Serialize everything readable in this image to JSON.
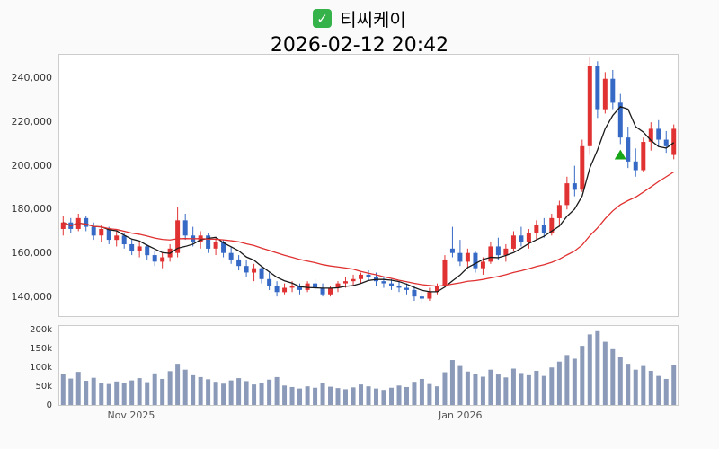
{
  "header": {
    "check_glyph": "✓",
    "checkbox_color": "#36b24a",
    "title": "티씨케이",
    "timestamp": "2026-02-12 20:42"
  },
  "chart_data": {
    "type": "candlestick",
    "title": "티씨케이",
    "subtitle": "2026-02-12 20:42",
    "legend": "none",
    "grid": false,
    "ylim": [
      131000,
      251000
    ],
    "vlim": [
      0,
      215000
    ],
    "candle_width": 5,
    "columns": [
      "open",
      "high",
      "low",
      "close",
      "volume"
    ],
    "y_ticks": [
      {
        "value": 140000,
        "label": "140,000"
      },
      {
        "value": 160000,
        "label": "160,000"
      },
      {
        "value": 180000,
        "label": "180,000"
      },
      {
        "value": 200000,
        "label": "200,000"
      },
      {
        "value": 220000,
        "label": "220,000"
      },
      {
        "value": 240000,
        "label": "240,000"
      }
    ],
    "v_ticks": [
      {
        "value": 0,
        "label": "0"
      },
      {
        "value": 50000,
        "label": "50k"
      },
      {
        "value": 100000,
        "label": "100k"
      },
      {
        "value": 150000,
        "label": "150k"
      },
      {
        "value": 200000,
        "label": "200k"
      }
    ],
    "x_ticks": [
      {
        "index": 9,
        "label": "Nov 2025"
      },
      {
        "index": 52,
        "label": "Jan 2026"
      }
    ],
    "colors": {
      "up": "#e03232",
      "down": "#3569c5",
      "volume": "#8b9ab8",
      "plot_bg": "#ffffff",
      "border": "#cccccc"
    },
    "overlays": [
      {
        "name": "ma-short-line",
        "window": 6,
        "color": "#1a1a1a"
      },
      {
        "name": "ma-long-line",
        "window": 24,
        "color": "#e03030"
      }
    ],
    "marker": {
      "index": 73,
      "price": 205000,
      "shape": "up-triangle",
      "color": "#17a617"
    },
    "candles": [
      [
        171000,
        177000,
        168000,
        174000,
        85000
      ],
      [
        174000,
        176000,
        169000,
        171000,
        72000
      ],
      [
        171000,
        178000,
        170000,
        176000,
        90000
      ],
      [
        176000,
        177000,
        170000,
        172000,
        66000
      ],
      [
        172000,
        174000,
        166000,
        168000,
        74000
      ],
      [
        168000,
        173000,
        165000,
        171000,
        61000
      ],
      [
        171000,
        172000,
        164000,
        166000,
        57000
      ],
      [
        166000,
        170000,
        163000,
        168000,
        64000
      ],
      [
        168000,
        169000,
        162000,
        164000,
        59000
      ],
      [
        164000,
        166000,
        159000,
        161000,
        67000
      ],
      [
        161000,
        165000,
        158000,
        163000,
        73000
      ],
      [
        163000,
        164000,
        157000,
        159000,
        62000
      ],
      [
        159000,
        161000,
        154000,
        156000,
        86000
      ],
      [
        156000,
        160000,
        153000,
        158000,
        71000
      ],
      [
        158000,
        164000,
        156000,
        162000,
        92000
      ],
      [
        160000,
        181000,
        158000,
        175000,
        112000
      ],
      [
        175000,
        178000,
        166000,
        168000,
        96000
      ],
      [
        168000,
        172000,
        163000,
        165000,
        81000
      ],
      [
        165000,
        170000,
        162000,
        168000,
        76000
      ],
      [
        168000,
        169000,
        160000,
        162000,
        70000
      ],
      [
        162000,
        167000,
        159000,
        165000,
        63000
      ],
      [
        165000,
        166000,
        158000,
        160000,
        58000
      ],
      [
        160000,
        163000,
        155000,
        157000,
        67000
      ],
      [
        157000,
        159000,
        152000,
        154000,
        73000
      ],
      [
        154000,
        157000,
        149000,
        151000,
        65000
      ],
      [
        151000,
        155000,
        147000,
        153000,
        56000
      ],
      [
        153000,
        154000,
        146000,
        148000,
        61000
      ],
      [
        148000,
        151000,
        143000,
        145000,
        69000
      ],
      [
        145000,
        147000,
        140000,
        142000,
        76000
      ],
      [
        142000,
        146000,
        141000,
        144000,
        53000
      ],
      [
        144000,
        147000,
        142000,
        145000,
        49000
      ],
      [
        145000,
        146000,
        141000,
        143000,
        45000
      ],
      [
        143000,
        147000,
        142000,
        146000,
        51000
      ],
      [
        146000,
        148000,
        143000,
        144000,
        47000
      ],
      [
        144000,
        146000,
        140000,
        141000,
        59000
      ],
      [
        141000,
        145000,
        140000,
        144000,
        50000
      ],
      [
        144000,
        147000,
        142000,
        146000,
        46000
      ],
      [
        146000,
        149000,
        144000,
        147000,
        43000
      ],
      [
        147000,
        150000,
        145000,
        148000,
        48000
      ],
      [
        148000,
        151000,
        146000,
        150000,
        56000
      ],
      [
        150000,
        152000,
        147000,
        149000,
        51000
      ],
      [
        149000,
        151000,
        145000,
        147000,
        45000
      ],
      [
        147000,
        149000,
        144000,
        146000,
        41000
      ],
      [
        146000,
        148000,
        143000,
        145000,
        47000
      ],
      [
        145000,
        147000,
        142000,
        144000,
        53000
      ],
      [
        144000,
        146000,
        141000,
        143000,
        49000
      ],
      [
        143000,
        145000,
        138000,
        140000,
        63000
      ],
      [
        140000,
        143000,
        137000,
        139000,
        71000
      ],
      [
        139000,
        144000,
        138000,
        142000,
        57000
      ],
      [
        142000,
        146000,
        141000,
        145000,
        51000
      ],
      [
        145000,
        159000,
        144000,
        157000,
        89000
      ],
      [
        162000,
        172000,
        158000,
        160000,
        122000
      ],
      [
        160000,
        166000,
        154000,
        156000,
        106000
      ],
      [
        156000,
        162000,
        153000,
        160000,
        91000
      ],
      [
        160000,
        161000,
        151000,
        153000,
        85000
      ],
      [
        153000,
        158000,
        150000,
        156000,
        77000
      ],
      [
        156000,
        165000,
        155000,
        163000,
        96000
      ],
      [
        163000,
        167000,
        157000,
        159000,
        83000
      ],
      [
        159000,
        164000,
        156000,
        162000,
        75000
      ],
      [
        162000,
        170000,
        161000,
        168000,
        99000
      ],
      [
        168000,
        172000,
        163000,
        165000,
        87000
      ],
      [
        165000,
        171000,
        162000,
        169000,
        81000
      ],
      [
        169000,
        175000,
        166000,
        173000,
        93000
      ],
      [
        173000,
        176000,
        167000,
        169000,
        79000
      ],
      [
        169000,
        178000,
        168000,
        176000,
        102000
      ],
      [
        176000,
        184000,
        172000,
        182000,
        118000
      ],
      [
        182000,
        195000,
        180000,
        192000,
        136000
      ],
      [
        192000,
        200000,
        186000,
        189000,
        126000
      ],
      [
        189000,
        212000,
        188000,
        209000,
        161000
      ],
      [
        209000,
        250000,
        205000,
        246000,
        192000
      ],
      [
        246000,
        248000,
        222000,
        226000,
        201000
      ],
      [
        226000,
        243000,
        224000,
        240000,
        172000
      ],
      [
        240000,
        244000,
        226000,
        229000,
        152000
      ],
      [
        229000,
        233000,
        210000,
        213000,
        131000
      ],
      [
        213000,
        218000,
        199000,
        202000,
        112000
      ],
      [
        202000,
        208000,
        195000,
        198000,
        96000
      ],
      [
        198000,
        213000,
        197000,
        211000,
        106000
      ],
      [
        211000,
        220000,
        207000,
        217000,
        93000
      ],
      [
        217000,
        221000,
        209000,
        212000,
        79000
      ],
      [
        212000,
        216000,
        206000,
        209000,
        71000
      ],
      [
        205000,
        219000,
        203000,
        217000,
        108000
      ]
    ]
  }
}
